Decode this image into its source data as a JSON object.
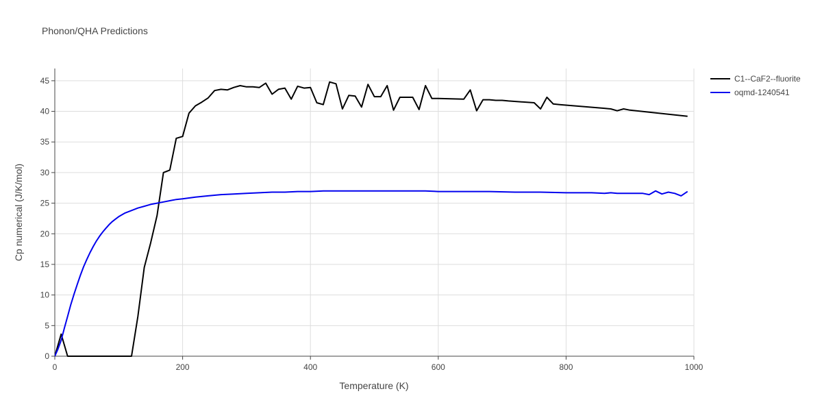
{
  "chart_data": {
    "type": "line",
    "title": "Phonon/QHA Predictions",
    "xlabel": "Temperature (K)",
    "ylabel": "Cp numerical (J/K/mol)",
    "xlim": [
      0,
      1000
    ],
    "ylim": [
      0,
      47
    ],
    "xticks": [
      0,
      200,
      400,
      600,
      800,
      1000
    ],
    "yticks": [
      0,
      5,
      10,
      15,
      20,
      25,
      30,
      35,
      40,
      45
    ],
    "grid": true,
    "legend_position": "top-right",
    "series": [
      {
        "name": "C1--CaF2--fluorite",
        "color": "#000000",
        "x": [
          0,
          10,
          20,
          30,
          40,
          50,
          60,
          70,
          80,
          90,
          100,
          110,
          120,
          130,
          140,
          150,
          160,
          170,
          180,
          190,
          200,
          210,
          220,
          230,
          240,
          250,
          260,
          270,
          280,
          290,
          300,
          310,
          320,
          330,
          340,
          350,
          360,
          370,
          380,
          390,
          400,
          410,
          420,
          430,
          440,
          450,
          460,
          470,
          480,
          490,
          500,
          510,
          520,
          530,
          540,
          550,
          560,
          570,
          580,
          590,
          600,
          640,
          650,
          660,
          670,
          680,
          690,
          700,
          710,
          750,
          760,
          770,
          780,
          790,
          860,
          870,
          880,
          890,
          900,
          990
        ],
        "y": [
          0,
          3.6,
          0,
          0,
          0,
          0,
          0,
          0,
          0,
          0,
          0,
          0,
          0,
          6.5,
          14.5,
          18.5,
          23,
          30,
          30.4,
          35.6,
          35.9,
          39.7,
          40.9,
          41.5,
          42.2,
          43.4,
          43.6,
          43.5,
          43.9,
          44.2,
          44,
          44,
          43.9,
          44.6,
          42.8,
          43.6,
          43.8,
          42,
          44.1,
          43.8,
          43.9,
          41.4,
          41.1,
          44.8,
          44.5,
          40.4,
          42.6,
          42.5,
          40.7,
          44.4,
          42.4,
          42.4,
          44.2,
          40.2,
          42.3,
          42.3,
          42.3,
          40.3,
          44.2,
          42.1,
          42.1,
          42,
          43.5,
          40.1,
          41.9,
          41.9,
          41.8,
          41.8,
          41.7,
          41.4,
          40.4,
          42.3,
          41.2,
          41.1,
          40.5,
          40.4,
          40.1,
          40.4,
          40.2,
          39.2
        ]
      },
      {
        "name": "oqmd-1240541",
        "color": "#0000ee",
        "x": [
          0,
          5,
          10,
          15,
          20,
          25,
          30,
          35,
          40,
          45,
          50,
          55,
          60,
          65,
          70,
          75,
          80,
          85,
          90,
          95,
          100,
          110,
          120,
          130,
          140,
          150,
          160,
          170,
          180,
          190,
          200,
          220,
          240,
          260,
          280,
          300,
          320,
          340,
          360,
          380,
          400,
          420,
          440,
          460,
          480,
          500,
          520,
          540,
          560,
          580,
          600,
          640,
          680,
          720,
          760,
          800,
          840,
          860,
          870,
          880,
          900,
          920,
          930,
          940,
          950,
          960,
          970,
          980,
          990
        ],
        "y": [
          0,
          1.2,
          2.6,
          4.6,
          6.5,
          8.4,
          10.1,
          11.7,
          13.2,
          14.6,
          15.8,
          16.9,
          17.9,
          18.8,
          19.6,
          20.3,
          20.9,
          21.5,
          22,
          22.4,
          22.8,
          23.4,
          23.8,
          24.2,
          24.5,
          24.8,
          25,
          25.2,
          25.4,
          25.6,
          25.7,
          26,
          26.2,
          26.4,
          26.5,
          26.6,
          26.7,
          26.8,
          26.8,
          26.9,
          26.9,
          27,
          27,
          27,
          27,
          27,
          27,
          27,
          27,
          27,
          26.9,
          26.9,
          26.9,
          26.8,
          26.8,
          26.7,
          26.7,
          26.6,
          26.7,
          26.6,
          26.6,
          26.6,
          26.4,
          27,
          26.5,
          26.8,
          26.6,
          26.2,
          26.9
        ]
      }
    ]
  }
}
